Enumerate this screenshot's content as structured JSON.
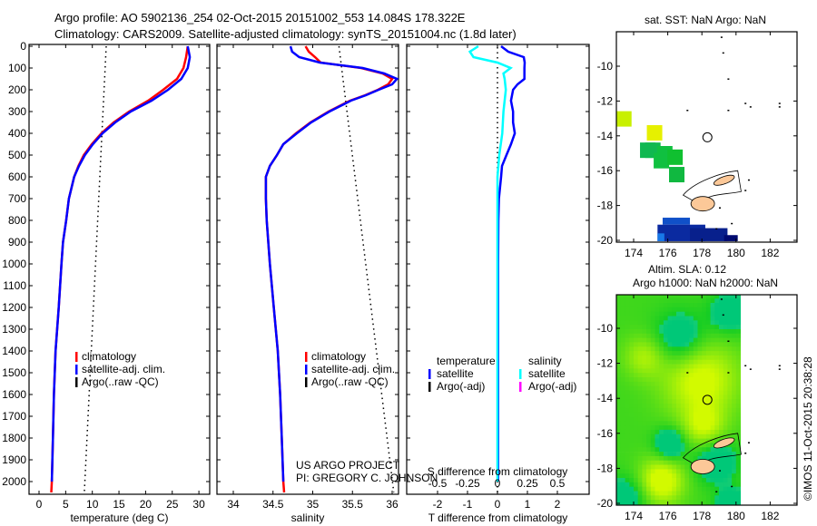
{
  "header": {
    "line1": "Argo profile: AO 5902136_254 02-Oct-2015 20151002_553 14.084S 178.322E",
    "line2": "Climatology: CARS2009. Satellite-adjusted climatology: synTS_20151004.nc (1.8d later)"
  },
  "credit": "©IMOS 11-Oct-2015 20:38:28",
  "annotation": {
    "line1": "US ARGO PROJECT",
    "line2": "PI: GREGORY C. JOHNSON"
  },
  "colors": {
    "climatology": "#ff0000",
    "satellite": "#0000ff",
    "argo": "#000000",
    "sal_satellite": "#00ffff",
    "sal_argo": "#ff00ff",
    "land": "#fcc898"
  },
  "chart_data": [
    {
      "type": "line",
      "panel": "temperature",
      "xlabel": "temperature (deg C)",
      "xticks": [
        "0",
        "5",
        "10",
        "15",
        "20",
        "25",
        "30"
      ],
      "xtick_values": [
        0,
        5,
        10,
        15,
        20,
        25,
        30
      ],
      "yticks": [
        "0",
        "100",
        "200",
        "300",
        "400",
        "500",
        "600",
        "700",
        "800",
        "900",
        "1000",
        "1100",
        "1200",
        "1300",
        "1400",
        "1500",
        "1600",
        "1700",
        "1800",
        "1900",
        "2000"
      ],
      "ytick_values": [
        0,
        100,
        200,
        300,
        400,
        500,
        600,
        700,
        800,
        900,
        1000,
        1100,
        1200,
        1300,
        1400,
        1500,
        1600,
        1700,
        1800,
        1900,
        2000
      ],
      "xlim": [
        -1.8,
        32
      ],
      "ylim": [
        2060,
        0
      ],
      "legend": [
        "climatology",
        "satellite-adj. clim.",
        "Argo(..raw -QC)"
      ],
      "series": [
        {
          "name": "climatology",
          "depth": [
            0,
            50,
            100,
            150,
            200,
            250,
            300,
            350,
            400,
            450,
            500,
            550,
            600,
            700,
            800,
            900,
            1000,
            1200,
            1400,
            1600,
            1800,
            2000,
            2050
          ],
          "values": [
            27.9,
            27.6,
            27.1,
            25.9,
            23.3,
            20.5,
            16.9,
            14.0,
            11.7,
            9.9,
            8.4,
            7.4,
            6.6,
            5.6,
            5.1,
            4.5,
            4.2,
            3.7,
            3.1,
            2.8,
            2.6,
            2.4,
            2.3
          ]
        },
        {
          "name": "satellite-adj. clim.",
          "depth": [
            0,
            50,
            100,
            150,
            200,
            250,
            300,
            350,
            400,
            450,
            500,
            550,
            600,
            700,
            800,
            900,
            1000,
            1200,
            1400,
            1600,
            1800,
            2000
          ],
          "values": [
            27.9,
            28.3,
            27.9,
            26.7,
            24.2,
            21.1,
            17.2,
            14.3,
            11.9,
            10.1,
            8.6,
            7.5,
            6.6,
            5.6,
            5.1,
            4.5,
            4.2,
            3.7,
            3.1,
            2.8,
            2.6,
            2.4
          ]
        },
        {
          "name": "Argo(..raw -QC)",
          "depth": [
            0,
            2050
          ],
          "values": [
            12.6,
            8.5
          ]
        }
      ]
    },
    {
      "type": "line",
      "panel": "salinity",
      "xlabel": "salinity",
      "xticks": [
        "34",
        "34.5",
        "35",
        "35.5",
        "36"
      ],
      "xtick_values": [
        34,
        34.5,
        35,
        35.5,
        36
      ],
      "xlim": [
        33.8,
        36.1
      ],
      "ylim": [
        2060,
        0
      ],
      "legend": [
        "climatology",
        "satellite-adj. clim.",
        "Argo(..raw -QC)"
      ],
      "series": [
        {
          "name": "climatology",
          "depth": [
            0,
            25,
            50,
            75,
            100,
            125,
            150,
            175,
            200,
            225,
            250,
            300,
            350,
            400,
            450,
            500,
            550,
            600,
            700,
            800,
            1000,
            1200,
            1400,
            1600,
            1800,
            2000,
            2050
          ],
          "values": [
            34.91,
            34.95,
            35.03,
            35.1,
            35.61,
            35.88,
            36.0,
            35.95,
            35.82,
            35.66,
            35.47,
            35.2,
            34.97,
            34.79,
            34.63,
            34.55,
            34.46,
            34.41,
            34.41,
            34.42,
            34.46,
            34.51,
            34.56,
            34.59,
            34.61,
            34.63,
            34.64
          ]
        },
        {
          "name": "satellite-adj. clim.",
          "depth": [
            0,
            25,
            50,
            75,
            100,
            125,
            150,
            175,
            200,
            225,
            250,
            300,
            350,
            400,
            450,
            500,
            550,
            600,
            700,
            800,
            1000,
            1200,
            1400,
            1600,
            1800,
            2000
          ],
          "values": [
            34.72,
            34.74,
            34.83,
            35.09,
            35.63,
            35.9,
            36.06,
            36.0,
            35.83,
            35.67,
            35.48,
            35.21,
            34.98,
            34.8,
            34.63,
            34.55,
            34.46,
            34.41,
            34.41,
            34.42,
            34.46,
            34.51,
            34.56,
            34.59,
            34.61,
            34.63
          ]
        },
        {
          "name": "Argo(..raw -QC)",
          "depth": [
            0,
            2050
          ],
          "values": [
            35.33,
            36.02
          ]
        }
      ]
    },
    {
      "type": "line",
      "panel": "difference",
      "xlabel": "T difference from climatology",
      "xlabel2": "S difference from climatology",
      "xticks": [
        "-2",
        "-1",
        "0",
        "1",
        "2"
      ],
      "xtick_values": [
        -2,
        -1,
        0,
        1,
        2
      ],
      "xticks2": [
        "-0.5",
        "-0.25",
        "0",
        "0.25",
        "0.5"
      ],
      "xtick_values2": [
        -0.5,
        -0.25,
        0,
        0.25,
        0.5
      ],
      "xlim": [
        -3,
        3.1
      ],
      "ylim": [
        2060,
        0
      ],
      "legend_headers": [
        "temperature",
        "salinity"
      ],
      "legend_t": [
        "satellite",
        "Argo(-adj)"
      ],
      "legend_s": [
        "satellite",
        "Argo(-adj)"
      ],
      "series": [
        {
          "name": "T satellite",
          "depth": [
            0,
            25,
            50,
            75,
            100,
            125,
            150,
            175,
            200,
            250,
            300,
            350,
            400,
            450,
            500,
            550,
            600,
            700,
            800,
            1000,
            1500,
            2000
          ],
          "values": [
            0.12,
            0.36,
            0.88,
            0.91,
            0.9,
            0.9,
            0.9,
            0.67,
            0.52,
            0.45,
            0.52,
            0.52,
            0.58,
            0.45,
            0.3,
            0.15,
            0.12,
            0.05,
            0.03,
            0.02,
            0.02,
            0.02
          ]
        },
        {
          "name": "S satellite",
          "depth": [
            0,
            25,
            50,
            75,
            100,
            125,
            150,
            200,
            300,
            400,
            500,
            600,
            800,
            1000,
            1500,
            2000
          ],
          "values": [
            -0.16,
            -0.23,
            -0.2,
            0.0,
            0.11,
            0.05,
            0.06,
            0.07,
            0.05,
            0.04,
            0.015,
            0.0,
            0.0,
            0.0,
            0.0,
            0.0
          ]
        }
      ]
    },
    {
      "type": "heatmap",
      "panel": "map-sst",
      "title": "sat. SST: NaN Argo: NaN",
      "xticks": [
        "174",
        "176",
        "178",
        "180",
        "182"
      ],
      "xtick_values": [
        174,
        176,
        178,
        180,
        182
      ],
      "yticks": [
        "-10",
        "-12",
        "-14",
        "-16",
        "-18",
        "-20"
      ],
      "ytick_values": [
        -10,
        -12,
        -14,
        -16,
        -18,
        -20
      ],
      "xlim": [
        173,
        183.6
      ],
      "ylim": [
        -20.1,
        -8
      ],
      "float_position": {
        "lon": 178.322,
        "lat": -14.084
      },
      "cells": [
        {
          "lon": 173.4,
          "lat": -13.0,
          "color": "#c8f000"
        },
        {
          "lon": 175.2,
          "lat": -13.8,
          "color": "#e6f000"
        },
        {
          "lon": 174.8,
          "lat": -14.8,
          "color": "#10b850"
        },
        {
          "lon": 175.1,
          "lat": -14.8,
          "color": "#10b850"
        },
        {
          "lon": 175.8,
          "lat": -15.0,
          "color": "#10c040"
        },
        {
          "lon": 175.6,
          "lat": -15.4,
          "color": "#10c040"
        },
        {
          "lon": 176.4,
          "lat": -15.2,
          "color": "#10c030"
        },
        {
          "lon": 176.5,
          "lat": -16.2,
          "color": "#10b840"
        }
      ],
      "blue_patch": [
        {
          "lon0": 175.7,
          "lon1": 177.3,
          "lat0": -18.7,
          "lat1": -19.1,
          "color": "#1050c8"
        },
        {
          "lon0": 175.4,
          "lon1": 178.2,
          "lat0": -19.1,
          "lat1": -20.05,
          "color": "#0a2aa0"
        },
        {
          "lon0": 177.3,
          "lon1": 179.5,
          "lat0": -19.3,
          "lat1": -20.05,
          "color": "#08208c"
        },
        {
          "lon0": 179.3,
          "lon1": 180.1,
          "lat0": -19.7,
          "lat1": -20.05,
          "color": "#000a70"
        },
        {
          "lon0": 175.4,
          "lon1": 175.8,
          "lat0": -19.6,
          "lat1": -20.05,
          "color": "#1878e8"
        }
      ]
    },
    {
      "type": "heatmap",
      "panel": "map-sla",
      "title1": "Altim. SLA: 0.12",
      "title2": "Argo h1000: NaN h2000: NaN",
      "xticks": [
        "174",
        "176",
        "178",
        "180",
        "182"
      ],
      "xtick_values": [
        174,
        176,
        178,
        180,
        182
      ],
      "yticks": [
        "-10",
        "-12",
        "-14",
        "-16",
        "-18",
        "-20"
      ],
      "ytick_values": [
        -10,
        -12,
        -14,
        -16,
        -18,
        -20
      ],
      "xlim": [
        173,
        183.6
      ],
      "ylim": [
        -20.1,
        -8
      ],
      "data_extent_lon": [
        173,
        180.1
      ],
      "float_position": {
        "lon": 178.322,
        "lat": -14.084
      }
    }
  ]
}
